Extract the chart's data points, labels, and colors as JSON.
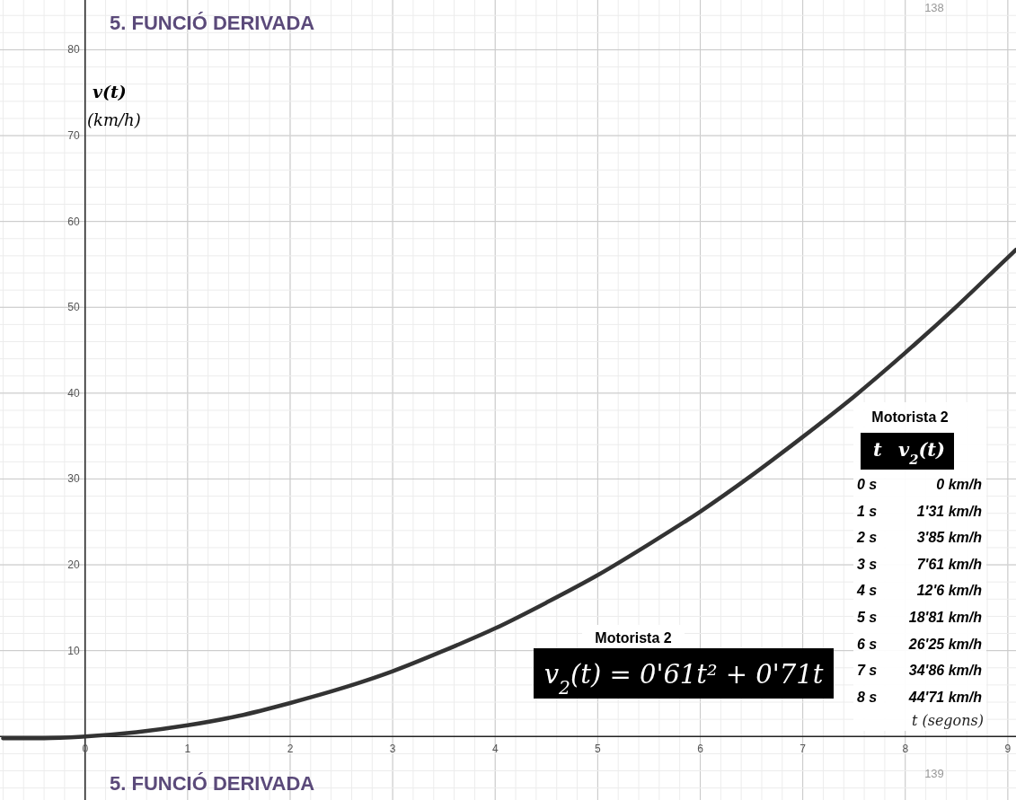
{
  "chart_data": {
    "type": "line",
    "title": "5. FUNCIÓ DERIVADA",
    "xlabel": "t (segons)",
    "ylabel": "v(t) (km/h)",
    "x": [
      -0.8,
      -0.4,
      0,
      0.5,
      1,
      1.5,
      2,
      2.5,
      3,
      3.5,
      4,
      4.5,
      5,
      5.5,
      6,
      6.5,
      7,
      7.5,
      8,
      8.5,
      9,
      9.08
    ],
    "series": [
      {
        "color": "#333333",
        "values": [
          -0.2,
          -0.2,
          0,
          0.5,
          1.3,
          2.4,
          3.9,
          5.6,
          7.6,
          10,
          12.6,
          15.6,
          18.8,
          22.4,
          26.2,
          30.4,
          34.9,
          39.6,
          44.7,
          50.1,
          55.8,
          56.7
        ]
      }
    ],
    "xlim": [
      -0.83,
      9.08
    ],
    "ylim": [
      -7.4,
      85.8
    ],
    "xticks": [
      0,
      1,
      2,
      3,
      4,
      5,
      6,
      7,
      8,
      9
    ],
    "yticks": [
      10,
      20,
      30,
      40,
      50,
      60,
      70,
      80
    ],
    "grid": true,
    "marker": "none",
    "line_style": "solid",
    "annotations": [
      "138",
      "5. FUNCIÓ DERIVADA",
      "139",
      "Motorista 2",
      "v$_{2}$(t) = 0'61t² + 0'71t",
      "Motorista 2",
      "t",
      "v$_{2}$(t)",
      "0 s",
      "0 km/h",
      "1 s",
      "1'31 km/h",
      "2 s",
      "3'85 km/h",
      "3 s",
      "7'61 km/h",
      "4 s",
      "12'6 km/h",
      "5 s",
      "18'81 km/h",
      "6 s",
      "26'25 km/h",
      "7 s",
      "34'86 km/h",
      "8 s",
      "44'71 km/h"
    ]
  }
}
